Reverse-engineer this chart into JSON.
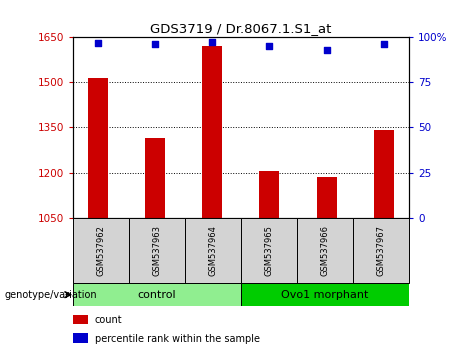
{
  "title": "GDS3719 / Dr.8067.1.S1_at",
  "samples": [
    "GSM537962",
    "GSM537963",
    "GSM537964",
    "GSM537965",
    "GSM537966",
    "GSM537967"
  ],
  "counts": [
    1515,
    1315,
    1620,
    1205,
    1185,
    1340
  ],
  "percentiles": [
    97,
    96,
    97.5,
    95,
    93,
    96
  ],
  "ylim_left": [
    1050,
    1650
  ],
  "ylim_right": [
    0,
    100
  ],
  "yticks_left": [
    1050,
    1200,
    1350,
    1500,
    1650
  ],
  "ytick_labels_left": [
    "1050",
    "1200",
    "1350",
    "1500",
    "1650"
  ],
  "yticks_right": [
    0,
    25,
    50,
    75,
    100
  ],
  "ytick_labels_right": [
    "0",
    "25",
    "50",
    "75",
    "100%"
  ],
  "groups": [
    {
      "label": "control",
      "indices": [
        0,
        1,
        2
      ],
      "color": "#90EE90"
    },
    {
      "label": "Ovo1 morphant",
      "indices": [
        3,
        4,
        5
      ],
      "color": "#00CC00"
    }
  ],
  "bar_color": "#CC0000",
  "dot_color": "#0000CC",
  "bar_width": 0.35,
  "grid_color": "black",
  "legend_items": [
    {
      "label": "count",
      "color": "#CC0000"
    },
    {
      "label": "percentile rank within the sample",
      "color": "#0000CC"
    }
  ],
  "genotype_label": "genotype/variation",
  "left_tick_color": "#CC0000",
  "right_tick_color": "#0000CC"
}
